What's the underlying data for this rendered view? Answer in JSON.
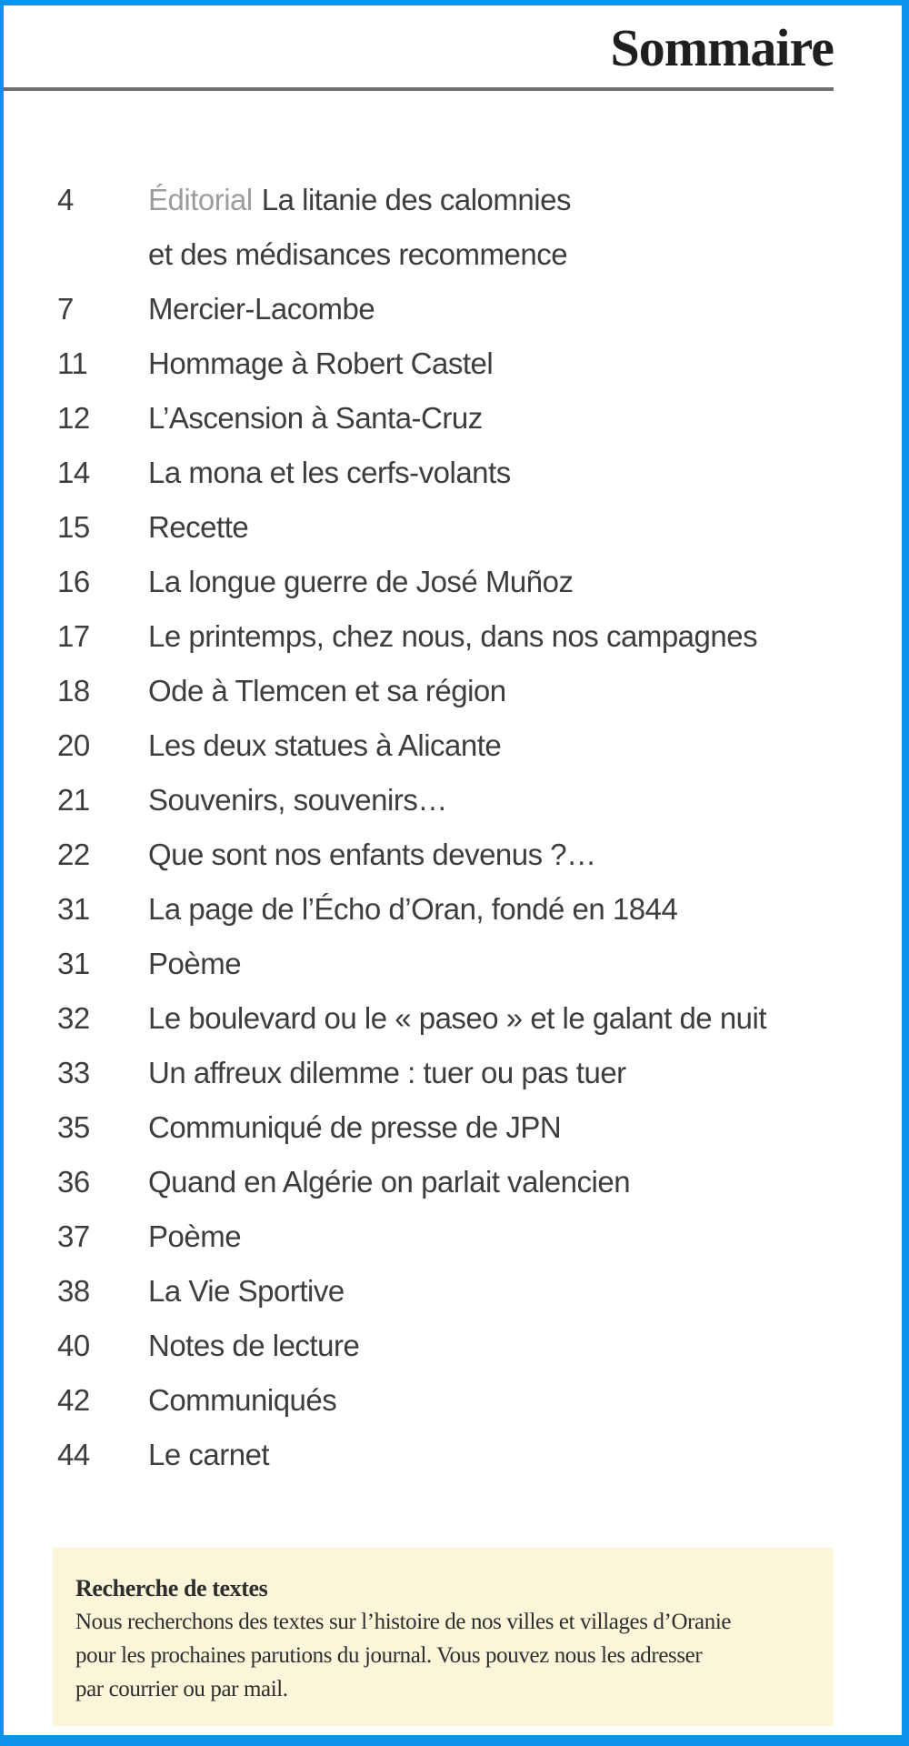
{
  "header": {
    "title": "Sommaire"
  },
  "toc": {
    "entries": [
      {
        "page": "4",
        "label": "Éditorial",
        "title": "La litanie des calomnies",
        "title_line2": "et des médisances recommence"
      },
      {
        "page": "7",
        "title": "Mercier-Lacombe"
      },
      {
        "page": "11",
        "title": "Hommage à Robert Castel"
      },
      {
        "page": "12",
        "title": "L’Ascension à Santa-Cruz"
      },
      {
        "page": "14",
        "title": "La mona et les cerfs-volants"
      },
      {
        "page": "15",
        "title": "Recette"
      },
      {
        "page": "16",
        "title": "La longue guerre de José Muñoz"
      },
      {
        "page": "17",
        "title": "Le printemps, chez nous, dans nos campagnes"
      },
      {
        "page": "18",
        "title": "Ode à Tlemcen et sa région"
      },
      {
        "page": "20",
        "title": "Les deux statues à Alicante"
      },
      {
        "page": "21",
        "title": "Souvenirs, souvenirs…"
      },
      {
        "page": "22",
        "title": "Que sont nos enfants devenus ?…"
      },
      {
        "page": "31",
        "title": "La page de l’Écho d’Oran, fondé en 1844"
      },
      {
        "page": "31",
        "title": "Poème"
      },
      {
        "page": "32",
        "title": "Le boulevard ou le « paseo » et le galant de nuit"
      },
      {
        "page": "33",
        "title": "Un affreux dilemme : tuer ou pas tuer"
      },
      {
        "page": "35",
        "title": "Communiqué de presse de JPN"
      },
      {
        "page": "36",
        "title": "Quand en Algérie on parlait valencien"
      },
      {
        "page": "37",
        "title": "Poème"
      },
      {
        "page": "38",
        "title": "La Vie Sportive"
      },
      {
        "page": "40",
        "title": "Notes de lecture"
      },
      {
        "page": "42",
        "title": "Communiqués"
      },
      {
        "page": "44",
        "title": "Le carnet"
      }
    ]
  },
  "note": {
    "heading": "Recherche de textes",
    "lines": [
      "Nous recherchons des textes sur l’histoire de nos villes et villages d’Oranie",
      "pour les prochaines parutions du journal. Vous pouvez nous les adresser",
      "par courrier ou par mail."
    ]
  },
  "colors": {
    "border": "#0e93ec",
    "rule": "#6f6f6f",
    "text": "#3d3d3d",
    "label_gray": "#9c9c9c",
    "note_bg": "#fbf6d9"
  }
}
